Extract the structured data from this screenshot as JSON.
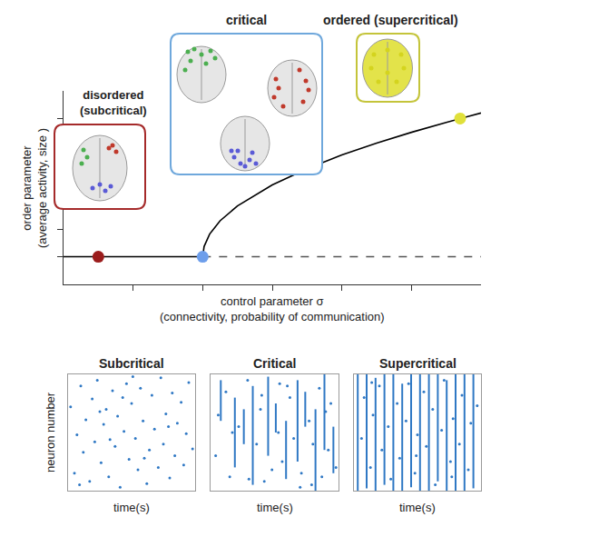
{
  "chart_data": [
    {
      "type": "line",
      "xlabel": [
        "control parameter σ",
        "(connectivity, probability of communication)"
      ],
      "ylabel": [
        "order parameter",
        "(average activity, size )"
      ],
      "xlim": [
        0,
        6
      ],
      "ylim": [
        0,
        7
      ],
      "xticks": [
        1,
        2,
        3,
        4,
        5
      ],
      "yticks": [
        1,
        2,
        3,
        4,
        5,
        6
      ],
      "tick_labels": false,
      "grid": false,
      "series": [
        {
          "color": "#000000",
          "line_style": "solid",
          "x": [
            0,
            2
          ],
          "values": [
            1,
            1
          ]
        },
        {
          "color": "#000000",
          "line_style": "solid",
          "x": [
            2,
            2.02,
            2.1,
            2.25,
            2.5,
            3,
            3.5,
            4,
            4.5,
            5,
            5.5,
            6
          ],
          "values": [
            1,
            1.37,
            1.82,
            2.3,
            2.84,
            3.6,
            4.18,
            4.68,
            5.11,
            5.5,
            5.86,
            6.2
          ]
        },
        {
          "color": "#555555",
          "line_style": "dashed",
          "x": [
            2,
            6
          ],
          "values": [
            1,
            1
          ]
        },
        {
          "type": "scatter",
          "marker": "circle",
          "colors": [
            "#9b1c1c",
            "#6d9eeb",
            "#e0e03a"
          ],
          "x": [
            0.5,
            2,
            5.7
          ],
          "values": [
            1,
            1,
            6.0
          ]
        }
      ],
      "annotations": [
        {
          "text": [
            "disordered",
            "(subcritical)"
          ],
          "color": "#a52a2a"
        },
        {
          "text": [
            "critical"
          ],
          "color": "#6fa8dc"
        },
        {
          "text": [
            "ordered (supercritical)"
          ],
          "color": "#c4c43a"
        }
      ]
    },
    {
      "type": "raster",
      "title": "Subcritical",
      "xlabel": "time(s)",
      "ylabel": "neuron number",
      "xlim": [
        0,
        10
      ],
      "ylim": [
        0,
        100
      ],
      "xticks": [],
      "yticks": [],
      "tick_labels": false,
      "color": "#2f78c4",
      "spikes": {
        "time": [
          0.2,
          0.5,
          0.7,
          1.0,
          1.2,
          1.4,
          1.7,
          1.9,
          2.1,
          2.3,
          2.6,
          2.8,
          3.0,
          3.2,
          3.5,
          3.7,
          3.9,
          4.1,
          4.4,
          4.6,
          4.8,
          5.0,
          5.3,
          5.5,
          5.7,
          5.9,
          6.2,
          6.4,
          6.6,
          6.8,
          7.1,
          7.3,
          7.5,
          7.7,
          8.0,
          8.2,
          8.4,
          8.6,
          8.9,
          9.1,
          9.3,
          9.5,
          9.8,
          0.9,
          2.5,
          4.3,
          6.0,
          7.9,
          3.3,
          5.1
        ],
        "neuron": [
          72,
          15,
          48,
          90,
          33,
          61,
          8,
          79,
          42,
          95,
          24,
          57,
          70,
          12,
          86,
          38,
          64,
          3,
          51,
          92,
          27,
          75,
          45,
          18,
          88,
          60,
          6,
          35,
          82,
          53,
          20,
          97,
          40,
          66,
          11,
          84,
          30,
          58,
          76,
          22,
          49,
          93,
          36,
          5,
          68,
          80,
          28,
          55,
          44,
          98
        ]
      },
      "bursts": {
        "time": [],
        "from": [],
        "to": []
      }
    },
    {
      "type": "raster",
      "title": "Critical",
      "xlabel": "time(s)",
      "xlim": [
        0,
        10
      ],
      "ylim": [
        0,
        100
      ],
      "xticks": [],
      "yticks": [],
      "tick_labels": false,
      "color": "#2f78c4",
      "spikes": {
        "time": [
          0.4,
          1.2,
          1.5,
          2.2,
          2.9,
          3.6,
          3.9,
          4.2,
          4.8,
          5.4,
          5.6,
          6.2,
          6.5,
          7.1,
          7.7,
          7.9,
          8.5,
          9.2,
          9.4,
          9.8,
          0.6,
          1.7,
          3.0,
          4.0,
          5.3,
          6.0,
          7.0,
          8.0,
          8.7,
          9.0
        ],
        "neuron": [
          30,
          85,
          12,
          55,
          95,
          40,
          70,
          8,
          18,
          92,
          25,
          80,
          45,
          15,
          60,
          5,
          88,
          35,
          75,
          20,
          65,
          50,
          10,
          82,
          50,
          90,
          3,
          40,
          12,
          68
        ]
      },
      "bursts": {
        "time": [
          0.8,
          1.9,
          2.6,
          3.3,
          4.5,
          5.1,
          5.9,
          6.8,
          7.4,
          8.2,
          8.9,
          9.6
        ],
        "from": [
          60,
          20,
          40,
          5,
          30,
          50,
          10,
          25,
          55,
          0,
          35,
          15
        ],
        "to": [
          95,
          80,
          70,
          90,
          98,
          75,
          60,
          95,
          85,
          70,
          100,
          55
        ]
      }
    },
    {
      "type": "raster",
      "title": "Supercritical",
      "xlabel": "time(s)",
      "xlim": [
        0,
        10
      ],
      "ylim": [
        0,
        100
      ],
      "xticks": [],
      "yticks": [],
      "tick_labels": false,
      "color": "#2f78c4",
      "spikes": {
        "time": [
          0.6,
          0.8,
          1.3,
          1.5,
          2.0,
          2.2,
          2.7,
          2.9,
          3.4,
          3.6,
          4.1,
          4.3,
          4.8,
          5.0,
          5.5,
          5.7,
          6.2,
          6.4,
          6.9,
          7.1,
          7.6,
          7.8,
          8.3,
          8.5,
          9.0,
          9.2,
          9.7,
          1.4,
          4.9,
          7.7
        ],
        "neuron": [
          45,
          80,
          20,
          65,
          90,
          35,
          55,
          10,
          75,
          28,
          60,
          92,
          15,
          48,
          85,
          38,
          70,
          5,
          52,
          95,
          25,
          62,
          40,
          82,
          18,
          58,
          73,
          93,
          30,
          12
        ]
      },
      "bursts": {
        "time": [
          0.3,
          1.0,
          1.7,
          2.4,
          3.1,
          3.8,
          4.5,
          5.2,
          5.9,
          6.6,
          7.3,
          8.0,
          8.7,
          9.4
        ],
        "from": [
          0,
          2,
          0,
          5,
          0,
          0,
          3,
          0,
          0,
          8,
          0,
          0,
          0,
          2
        ],
        "to": [
          100,
          100,
          97,
          100,
          100,
          92,
          100,
          100,
          100,
          100,
          95,
          100,
          100,
          100
        ]
      }
    }
  ]
}
